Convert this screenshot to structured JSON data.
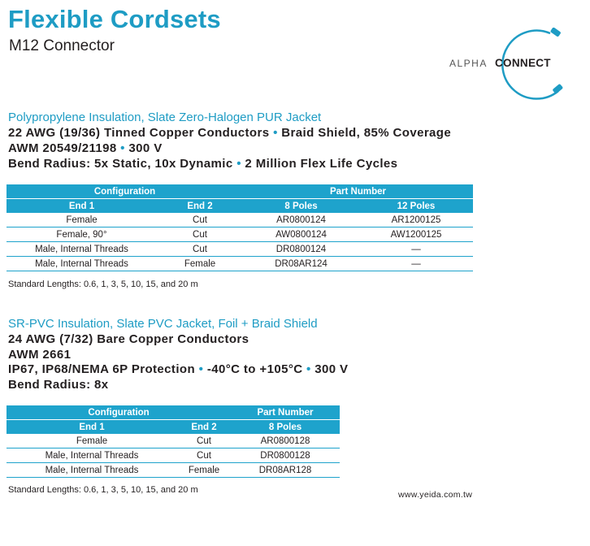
{
  "header": {
    "title": "Flexible Cordsets",
    "subtitle": "M12 Connector"
  },
  "logo": {
    "alpha": "ALPHA",
    "connect": "CONNECT"
  },
  "section1": {
    "heading": "Polypropylene Insulation, Slate Zero-Halogen PUR Jacket",
    "line1a": "22 AWG (19/36) Tinned Copper Conductors",
    "line1b": "Braid Shield, 85% Coverage",
    "line2a": "AWM 20549/21198",
    "line2b": "300 V",
    "line3a": "Bend Radius: 5x Static, 10x Dynamic",
    "line3b": "2 Million Flex Life Cycles",
    "table": {
      "group_config": "Configuration",
      "group_part": "Part Number",
      "cols": [
        "End 1",
        "End 2",
        "8 Poles",
        "12 Poles"
      ],
      "rows": [
        [
          "Female",
          "Cut",
          "AR0800124",
          "AR1200125"
        ],
        [
          "Female, 90°",
          "Cut",
          "AW0800124",
          "AW1200125"
        ],
        [
          "Male, Internal Threads",
          "Cut",
          "DR0800124",
          "—"
        ],
        [
          "Male, Internal Threads",
          "Female",
          "DR08AR124",
          "—"
        ]
      ]
    },
    "note": "Standard Lengths: 0.6, 1, 3, 5, 10, 15, and 20 m"
  },
  "section2": {
    "heading": "SR-PVC Insulation, Slate PVC Jacket, Foil + Braid Shield",
    "line1": "24 AWG (7/32) Bare Copper Conductors",
    "line2": "AWM 2661",
    "line3a": "IP67, IP68/NEMA 6P Protection",
    "line3b": "-40°C to +105°C",
    "line3c": "300 V",
    "line4": "Bend Radius: 8x",
    "table": {
      "group_config": "Configuration",
      "group_part": "Part Number",
      "cols": [
        "End 1",
        "End 2",
        "8 Poles"
      ],
      "rows": [
        [
          "Female",
          "Cut",
          "AR0800128"
        ],
        [
          "Male, Internal Threads",
          "Cut",
          "DR0800128"
        ],
        [
          "Male, Internal Threads",
          "Female",
          "DR08AR128"
        ]
      ]
    },
    "note": "Standard Lengths: 0.6, 1, 3, 5, 10, 15, and 20 m"
  },
  "footer": {
    "url": "www.yeida.com.tw"
  },
  "colors": {
    "accent": "#1e9cc4",
    "text": "#231f20"
  },
  "separator_glyph": "•"
}
